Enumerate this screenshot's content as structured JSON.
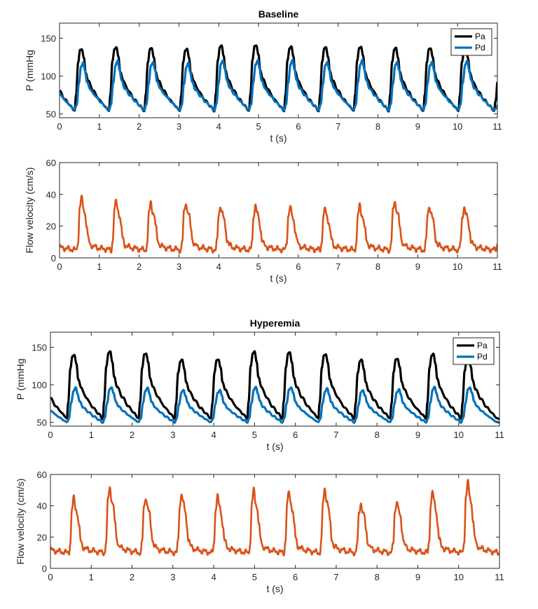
{
  "colors": {
    "Pa": "#000000",
    "Pd": "#0072BD",
    "flow": "#D95319",
    "axis": "#262626"
  },
  "chart_data": [
    {
      "id": "baseline-pressure",
      "type": "line",
      "title": "Baseline",
      "xlabel": "t (s)",
      "ylabel": "P (mmHg",
      "xlim": [
        0,
        11
      ],
      "ylim": [
        45,
        170
      ],
      "xticks": [
        0,
        1,
        2,
        3,
        4,
        5,
        6,
        7,
        8,
        9,
        10,
        11
      ],
      "yticks": [
        50,
        100,
        150
      ],
      "legend": "top-right",
      "beat_onsets": [
        0.38,
        1.24,
        2.13,
        3.02,
        3.89,
        4.76,
        5.64,
        6.51,
        7.39,
        8.27,
        9.14,
        10.02,
        10.92
      ],
      "series": [
        {
          "name": "Pa",
          "color": "#000000",
          "min": 54,
          "peaks": [
            136,
            138,
            137,
            136,
            140,
            141,
            139,
            138,
            139,
            137,
            137,
            136,
            106
          ]
        },
        {
          "name": "Pd",
          "color": "#0072BD",
          "min": 55,
          "peaks": [
            118,
            120,
            119,
            117,
            121,
            121,
            121,
            119,
            121,
            119,
            119,
            120,
            77
          ]
        }
      ]
    },
    {
      "id": "baseline-flow",
      "type": "line",
      "title": "",
      "xlabel": "t (s)",
      "ylabel": "Flow velocity (cm/s)",
      "xlim": [
        0,
        11
      ],
      "ylim": [
        0,
        60
      ],
      "xticks": [
        0,
        1,
        2,
        3,
        4,
        5,
        6,
        7,
        8,
        9,
        10,
        11
      ],
      "yticks": [
        0,
        20,
        40,
        60
      ],
      "beat_onsets": [
        0.43,
        1.3,
        2.17,
        3.05,
        3.92,
        4.8,
        5.67,
        6.55,
        7.42,
        8.3,
        9.17,
        10.04,
        10.95
      ],
      "series": [
        {
          "name": "",
          "color": "#D95319",
          "min": 5,
          "peaks": [
            38,
            36,
            35,
            35,
            33,
            33,
            32,
            31,
            33,
            36,
            33,
            32,
            18
          ]
        }
      ]
    },
    {
      "id": "hyperemia-pressure",
      "type": "line",
      "title": "Hyperemia",
      "xlabel": "t (s)",
      "ylabel": "P (mmHg",
      "xlim": [
        0,
        11
      ],
      "ylim": [
        45,
        170
      ],
      "xticks": [
        0,
        1,
        2,
        3,
        4,
        5,
        6,
        7,
        8,
        9,
        10,
        11
      ],
      "yticks": [
        50,
        100,
        150
      ],
      "legend": "top-right",
      "beat_onsets": [
        0.4,
        1.28,
        2.16,
        3.04,
        3.93,
        4.82,
        5.68,
        6.56,
        7.44,
        8.32,
        9.2,
        10.06
      ],
      "series": [
        {
          "name": "Pa",
          "color": "#000000",
          "min": 55,
          "peaks": [
            140,
            144,
            142,
            133,
            134,
            144,
            143,
            141,
            133,
            135,
            141,
            137
          ]
        },
        {
          "name": "Pd",
          "color": "#0072BD",
          "min": 50,
          "peaks": [
            96,
            97,
            96,
            93,
            93,
            97,
            97,
            95,
            93,
            94,
            97,
            97
          ]
        }
      ]
    },
    {
      "id": "hyperemia-flow",
      "type": "line",
      "title": "",
      "xlabel": "t (s)",
      "ylabel": "Flow velocity (cm/s)",
      "xlim": [
        0,
        11
      ],
      "ylim": [
        0,
        60
      ],
      "xticks": [
        0,
        1,
        2,
        3,
        4,
        5,
        6,
        7,
        8,
        9,
        10,
        11
      ],
      "yticks": [
        0,
        20,
        40,
        60
      ],
      "beat_onsets": [
        0.45,
        1.33,
        2.21,
        3.09,
        3.97,
        4.86,
        5.72,
        6.6,
        7.48,
        8.36,
        9.24,
        10.1
      ],
      "series": [
        {
          "name": "",
          "color": "#D95319",
          "min": 10,
          "peaks": [
            45,
            52,
            46,
            48,
            46,
            50,
            49,
            51,
            42,
            43,
            49,
            55
          ]
        }
      ]
    }
  ]
}
